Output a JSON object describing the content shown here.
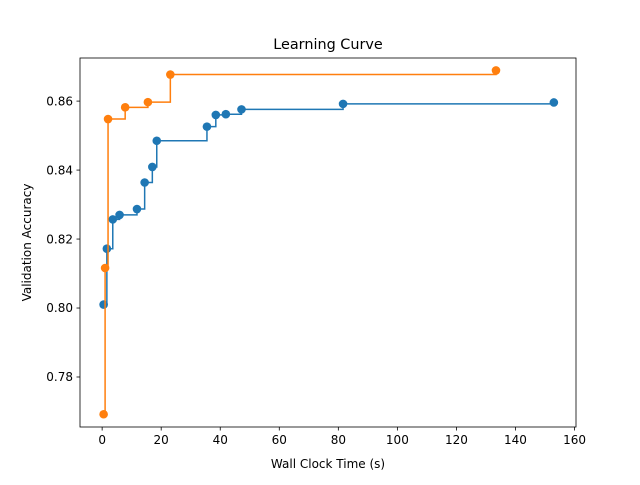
{
  "chart_data": {
    "type": "line",
    "title": "Learning Curve",
    "xlabel": "Wall Clock Time (s)",
    "ylabel": "Validation Accuracy",
    "xlim": [
      -7.5,
      160.5
    ],
    "ylim": [
      0.7655,
      0.8725
    ],
    "xticks": [
      0,
      20,
      40,
      60,
      80,
      100,
      120,
      140,
      160
    ],
    "xtick_labels": [
      "0",
      "20",
      "40",
      "60",
      "80",
      "100",
      "120",
      "140",
      "160"
    ],
    "yticks": [
      0.78,
      0.8,
      0.82,
      0.84,
      0.86
    ],
    "ytick_labels": [
      "0.78",
      "0.80",
      "0.82",
      "0.84",
      "0.86"
    ],
    "step": "post",
    "markers": "circle",
    "grid": false,
    "legend": false,
    "series": [
      {
        "color": "#1f77b4",
        "x": [
          0.5,
          1.6,
          3.6,
          5.9,
          11.8,
          14.4,
          17.0,
          18.5,
          35.5,
          38.5,
          41.9,
          47.2,
          81.6,
          153.0
        ],
        "y": [
          0.801,
          0.8172,
          0.8257,
          0.827,
          0.8287,
          0.8364,
          0.8409,
          0.8485,
          0.8526,
          0.856,
          0.8562,
          0.8576,
          0.8592,
          0.8596
        ]
      },
      {
        "color": "#ff7f0e",
        "x": [
          0.5,
          1.0,
          2.0,
          7.8,
          15.5,
          23.1,
          133.4
        ],
        "y": [
          0.7692,
          0.8116,
          0.8548,
          0.8582,
          0.8597,
          0.8677,
          0.8689
        ]
      }
    ]
  }
}
